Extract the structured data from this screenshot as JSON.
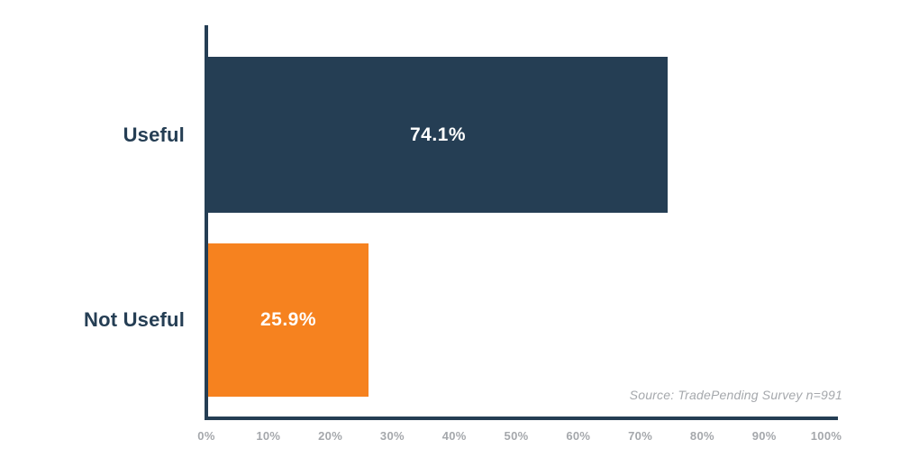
{
  "chart_data": {
    "type": "bar",
    "orientation": "horizontal",
    "title": "",
    "categories": [
      "Useful",
      "Not Useful"
    ],
    "values": [
      74.1,
      25.9
    ],
    "value_labels": [
      "74.1%",
      "25.9%"
    ],
    "series_colors": [
      "#253E54",
      "#F6821F"
    ],
    "x_tick_labels": [
      "0%",
      "10%",
      "20%",
      "30%",
      "40%",
      "50%",
      "60%",
      "70%",
      "80%",
      "90%",
      "100%"
    ],
    "xlim": [
      0,
      100
    ],
    "grid": false,
    "legend": "none",
    "source_note": "Source: TradePending Survey n=991",
    "colors": {
      "axis": "#253E54",
      "tick_label": "#A5A8AC",
      "category_label": "#253E54",
      "value_label": "#FFFFFF",
      "source_note": "#A5A8AC",
      "background": "#FFFFFF"
    }
  }
}
